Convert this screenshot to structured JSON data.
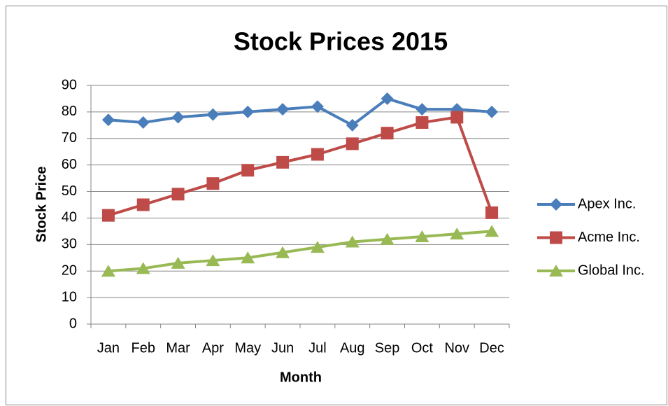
{
  "chart_data": {
    "type": "line",
    "title": "Stock Prices 2015",
    "x_label": "Month",
    "y_label": "Stock Price",
    "categories": [
      "Jan",
      "Feb",
      "Mar",
      "Apr",
      "May",
      "Jun",
      "Jul",
      "Aug",
      "Sep",
      "Oct",
      "Nov",
      "Dec"
    ],
    "series": [
      {
        "name": "Apex Inc.",
        "color": "#4a7ebb",
        "marker": "diamond",
        "values": [
          77,
          76,
          78,
          79,
          80,
          81,
          82,
          75,
          85,
          81,
          81,
          80
        ]
      },
      {
        "name": "Acme Inc.",
        "color": "#be4b48",
        "marker": "square",
        "values": [
          41,
          45,
          49,
          53,
          58,
          61,
          64,
          68,
          72,
          76,
          78,
          42
        ]
      },
      {
        "name": "Global Inc.",
        "color": "#98b954",
        "marker": "triangle",
        "values": [
          20,
          21,
          23,
          24,
          25,
          27,
          29,
          31,
          32,
          33,
          34,
          35
        ]
      }
    ],
    "ylim": [
      0,
      90
    ],
    "yticks": [
      0,
      10,
      20,
      30,
      40,
      50,
      60,
      70,
      80,
      90
    ],
    "grid": true,
    "legend": "right"
  }
}
